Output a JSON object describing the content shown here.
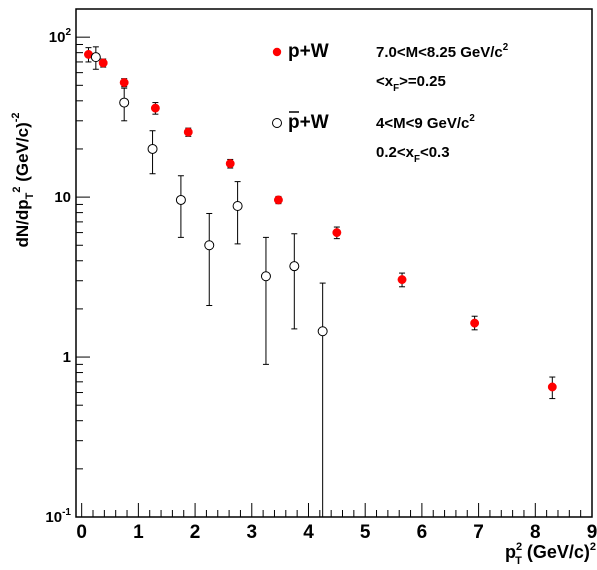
{
  "chart_data": {
    "type": "scatter",
    "xlabel": "p_T^2 (GeV/c)^2",
    "ylabel": "dN/dp_T^2 (GeV/c)^-2",
    "xlim": [
      -0.1,
      9
    ],
    "ylim": [
      0.1,
      150
    ],
    "yscale": "log",
    "grid": false,
    "legend_position": "top-right",
    "x_ticks": [
      "0",
      "1",
      "2",
      "3",
      "4",
      "5",
      "6",
      "7",
      "8",
      "9"
    ],
    "y_ticks": [
      "10^-1",
      "1",
      "10",
      "10^2"
    ],
    "series": [
      {
        "name": "p+W",
        "marker": "filled-circle",
        "color": "#ff0000",
        "conditions": [
          "7.0<M<8.25 GeV/c^2",
          "<x_F>=0.25"
        ],
        "points": [
          {
            "x": 0.12,
            "y": 78,
            "err_low": 8,
            "err_high": 8
          },
          {
            "x": 0.38,
            "y": 69,
            "err_low": 4,
            "err_high": 4
          },
          {
            "x": 0.75,
            "y": 52,
            "err_low": 3,
            "err_high": 3
          },
          {
            "x": 1.3,
            "y": 36,
            "err_low": 3,
            "err_high": 3
          },
          {
            "x": 1.88,
            "y": 25.5,
            "err_low": 1.5,
            "err_high": 1.5
          },
          {
            "x": 2.62,
            "y": 16.2,
            "err_low": 1,
            "err_high": 1
          },
          {
            "x": 3.47,
            "y": 9.6,
            "err_low": 0.5,
            "err_high": 0.5
          },
          {
            "x": 4.5,
            "y": 6.0,
            "err_low": 0.5,
            "err_high": 0.5
          },
          {
            "x": 5.65,
            "y": 3.05,
            "err_low": 0.3,
            "err_high": 0.3
          },
          {
            "x": 6.93,
            "y": 1.63,
            "err_low": 0.15,
            "err_high": 0.17
          },
          {
            "x": 8.3,
            "y": 0.65,
            "err_low": 0.1,
            "err_high": 0.1
          }
        ]
      },
      {
        "name": "p̄+W",
        "marker": "open-circle",
        "color": "#000000",
        "conditions": [
          "4<M<9 GeV/c^2",
          "0.2<x_F<0.3"
        ],
        "points": [
          {
            "x": 0.25,
            "y": 75,
            "err_low": 12,
            "err_high": 12
          },
          {
            "x": 0.75,
            "y": 39,
            "err_low": 9,
            "err_high": 9
          },
          {
            "x": 1.25,
            "y": 20,
            "err_low": 6,
            "err_high": 6
          },
          {
            "x": 1.75,
            "y": 9.6,
            "err_low": 4,
            "err_high": 4
          },
          {
            "x": 2.25,
            "y": 5.0,
            "err_low": 2.9,
            "err_high": 2.9
          },
          {
            "x": 2.75,
            "y": 8.8,
            "err_low": 3.7,
            "err_high": 3.7
          },
          {
            "x": 3.25,
            "y": 3.2,
            "err_low": 2.3,
            "err_high": 2.4
          },
          {
            "x": 3.75,
            "y": 3.7,
            "err_low": 2.2,
            "err_high": 2.2
          },
          {
            "x": 4.25,
            "y": 1.45,
            "err_low": 1.4,
            "err_high": 1.45
          }
        ]
      }
    ]
  }
}
